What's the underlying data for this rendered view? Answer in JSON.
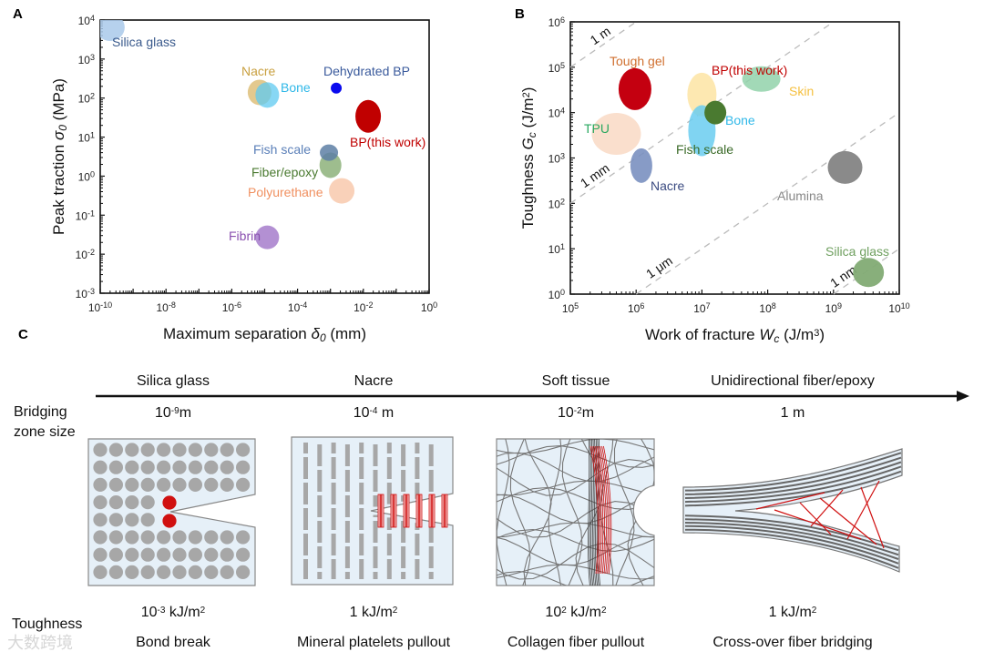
{
  "panels": {
    "a": "A",
    "b": "B",
    "c": "C"
  },
  "chart_data": [
    {
      "type": "scatter",
      "title": "",
      "xscale": "log",
      "yscale": "log",
      "xlim": [
        1e-10,
        1
      ],
      "ylim": [
        0.001,
        10000
      ],
      "x_tick_exponents": [
        "-10",
        "-8",
        "-6",
        "-4",
        "-2",
        "0"
      ],
      "y_tick_exponents": [
        "-3",
        "-2",
        "-1",
        "0",
        "1",
        "2",
        "3",
        "4"
      ],
      "tick_base": "10",
      "xlabel": [
        {
          "t": "Maximum separation ",
          "s": "n"
        },
        {
          "t": "δ",
          "s": "i"
        },
        {
          "t": "0",
          "s": "sub"
        },
        {
          "t": "  (mm)",
          "s": "n"
        }
      ],
      "ylabel": [
        {
          "t": "Peak traction ",
          "s": "n"
        },
        {
          "t": "σ",
          "s": "i"
        },
        {
          "t": "0",
          "s": "sub"
        },
        {
          "t": "  (MPa)",
          "s": "n"
        }
      ],
      "grid": false,
      "points": [
        {
          "label": "Silica glass",
          "x": 2e-10,
          "y": 6500,
          "color": "#a9c9ea",
          "label_color": "#3a5a8c"
        },
        {
          "label": "Nacre",
          "x": 7e-06,
          "y": 140,
          "color": "#dcbb72",
          "label_color": "#c9a040"
        },
        {
          "label": "Bone",
          "x": 1.2e-05,
          "y": 120,
          "color": "#5fcaf0",
          "label_color": "#30b8e8"
        },
        {
          "label": "Dehydrated BP",
          "x": 0.0015,
          "y": 180,
          "color": "#0a0aee",
          "label_color": "#3a5a9c"
        },
        {
          "label": "BP(this work)",
          "x": 0.014,
          "y": 34,
          "color": "#c00000",
          "label_color": "#c00000"
        },
        {
          "label": "Fiber/epoxy",
          "x": 0.001,
          "y": 1.9,
          "color": "#86ad72",
          "label_color": "#4a7a30"
        },
        {
          "label": "Fish scale",
          "x": 0.0009,
          "y": 4,
          "color": "#5d7fa5",
          "label_color": "#5a7fb8"
        },
        {
          "label": "Polyurethane",
          "x": 0.0022,
          "y": 0.42,
          "color": "#f8c9ad",
          "label_color": "#f09060"
        },
        {
          "label": "Fibrin",
          "x": 1.2e-05,
          "y": 0.027,
          "color": "#a67ccb",
          "label_color": "#8a50b0"
        }
      ]
    },
    {
      "type": "scatter",
      "title": "",
      "xscale": "log",
      "yscale": "log",
      "xlim": [
        100000,
        10000000000
      ],
      "ylim": [
        1,
        1000000
      ],
      "x_tick_exponents": [
        "5",
        "6",
        "7",
        "8",
        "9",
        "10"
      ],
      "y_tick_exponents": [
        "0",
        "1",
        "2",
        "3",
        "4",
        "5",
        "6"
      ],
      "tick_base": "10",
      "xlabel": [
        {
          "t": "Work of fracture ",
          "s": "n"
        },
        {
          "t": "W",
          "s": "i"
        },
        {
          "t": "c",
          "s": "sub"
        },
        {
          "t": " (J/m",
          "s": "n"
        },
        {
          "t": "3",
          "s": "sup"
        },
        {
          "t": ")",
          "s": "n"
        }
      ],
      "ylabel": [
        {
          "t": "Toughness ",
          "s": "n"
        },
        {
          "t": "G",
          "s": "i"
        },
        {
          "t": "c",
          "s": "sub"
        },
        {
          "t": " (J/m",
          "s": "n"
        },
        {
          "t": "2",
          "s": "sup"
        },
        {
          "t": ")",
          "s": "n"
        }
      ],
      "grid": false,
      "reference_lines": [
        {
          "label": "1 m",
          "length_m": 1
        },
        {
          "label": "1 mm",
          "length_m": 0.001
        },
        {
          "label": "1 μm",
          "length_m": 1e-06
        },
        {
          "label": "1 nm",
          "length_m": 1e-09
        }
      ],
      "points": [
        {
          "label": "Tough gel",
          "x": 500000,
          "y": 3400,
          "color": "#f9dcc8",
          "label_color": "#d07030"
        },
        {
          "label": "BP(this work)",
          "x": 960000,
          "y": 33000,
          "color": "#c40010",
          "label_color": "#c00000"
        },
        {
          "label": "Skin",
          "x": 10000000,
          "y": 25000,
          "color": "#fde6a8",
          "label_color": "#f5c040"
        },
        {
          "label": "Bone",
          "x": 10000000,
          "y": 4000,
          "color": "#6acdf0",
          "label_color": "#30b8e8"
        },
        {
          "label": "TPU",
          "x": 80000000,
          "y": 55000,
          "color": "#92d2aa",
          "label_color": "#2aa860"
        },
        {
          "label": "Fish scale",
          "x": 16000000,
          "y": 10000,
          "color": "#4a7a30",
          "label_color": "#3a6a28"
        },
        {
          "label": "Nacre",
          "x": 1200000,
          "y": 680,
          "color": "#7a90c0",
          "label_color": "#3a4a80"
        },
        {
          "label": "Alumina",
          "x": 1500000000,
          "y": 620,
          "color": "#8a8a8a",
          "label_color": "#888888"
        },
        {
          "label": "Silica glass",
          "x": 3400000000,
          "y": 3,
          "color": "#82ab74",
          "label_color": "#70a060"
        }
      ]
    }
  ],
  "diagram": {
    "row_labels": {
      "bridging_1": "Bridging",
      "bridging_2": "zone size",
      "toughness": "Toughness"
    },
    "columns": [
      {
        "material": "Silica glass",
        "size_base": "10",
        "size_exp": "-9",
        "size_unit": "m",
        "tough_base": "10",
        "tough_exp": "-3",
        "tough_unit": " kJ/m",
        "tough_unit_exp": "2",
        "mechanism": "Bond break"
      },
      {
        "material": "Nacre",
        "size_base": "10",
        "size_exp": "-4",
        "size_unit": " m",
        "tough_base": "1",
        "tough_exp": "",
        "tough_unit": " kJ/m",
        "tough_unit_exp": "2",
        "mechanism": "Mineral platelets pullout"
      },
      {
        "material": "Soft tissue",
        "size_base": "10",
        "size_exp": "-2",
        "size_unit": "m",
        "tough_base": "10",
        "tough_exp": "2",
        "tough_unit": " kJ/m",
        "tough_unit_exp": "2",
        "mechanism": "Collagen fiber pullout"
      },
      {
        "material": "Unidirectional fiber/epoxy",
        "size_base": "1 m",
        "size_exp": "",
        "size_unit": "",
        "tough_base": "1",
        "tough_exp": "",
        "tough_unit": " kJ/m",
        "tough_unit_exp": "2",
        "mechanism": "Cross-over fiber bridging"
      }
    ],
    "colors": {
      "matrix": "#e6f0f8",
      "particle": "#a7a7a7",
      "bridge": "#d01010",
      "fiber": "#555555"
    }
  },
  "watermark": "大数跨境"
}
